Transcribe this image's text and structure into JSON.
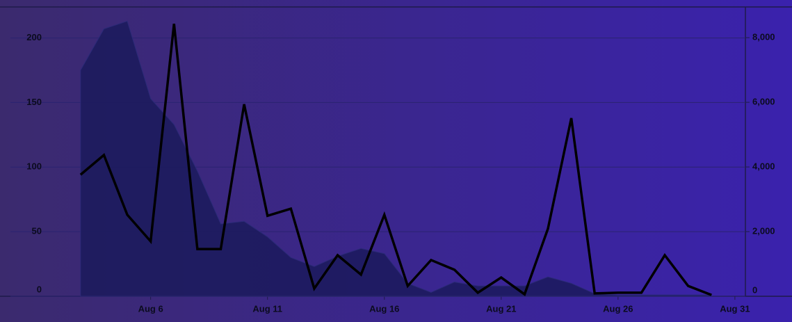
{
  "chart_data": {
    "type": "line",
    "x": [
      3,
      4,
      5,
      6,
      7,
      8,
      9,
      10,
      11,
      12,
      13,
      14,
      15,
      16,
      17,
      18,
      19,
      20,
      21,
      22,
      23,
      24,
      25,
      26,
      27,
      28,
      29,
      30
    ],
    "xlim": [
      0,
      31.45
    ],
    "xticks": [
      {
        "value": 6,
        "label": "Aug 6"
      },
      {
        "value": 11,
        "label": "Aug 11"
      },
      {
        "value": 16,
        "label": "Aug 16"
      },
      {
        "value": 21,
        "label": "Aug 21"
      },
      {
        "value": 26,
        "label": "Aug 26"
      },
      {
        "value": 31,
        "label": "Aug 31"
      }
    ],
    "ylim": [
      0,
      224
    ],
    "yticks": [
      0,
      50,
      100,
      150,
      200
    ],
    "y2lim": [
      0,
      8950
    ],
    "y2ticks": [
      0,
      {
        "value": 2000,
        "label": "2,000"
      },
      {
        "value": 4000,
        "label": "4,000"
      },
      {
        "value": 6000,
        "label": "6,000"
      },
      {
        "value": 8000,
        "label": "8,000"
      }
    ],
    "grid": true,
    "series": [
      {
        "style": "area",
        "color": "#1b1a5c",
        "values": [
          175,
          207,
          213,
          153,
          133,
          97,
          56,
          58,
          46,
          30,
          23,
          31,
          37,
          33,
          10,
          3,
          11,
          8,
          8,
          8,
          15,
          10,
          2,
          1,
          1,
          1,
          1,
          1
        ]
      },
      {
        "style": "line",
        "axis": "y2",
        "color": "#000000",
        "values": [
          3760,
          4370,
          2520,
          1700,
          8430,
          1460,
          1460,
          5940,
          2490,
          2710,
          240,
          1270,
          670,
          2520,
          320,
          1120,
          820,
          110,
          580,
          60,
          2090,
          5510,
          90,
          110,
          110,
          1270,
          320,
          40
        ]
      }
    ]
  }
}
